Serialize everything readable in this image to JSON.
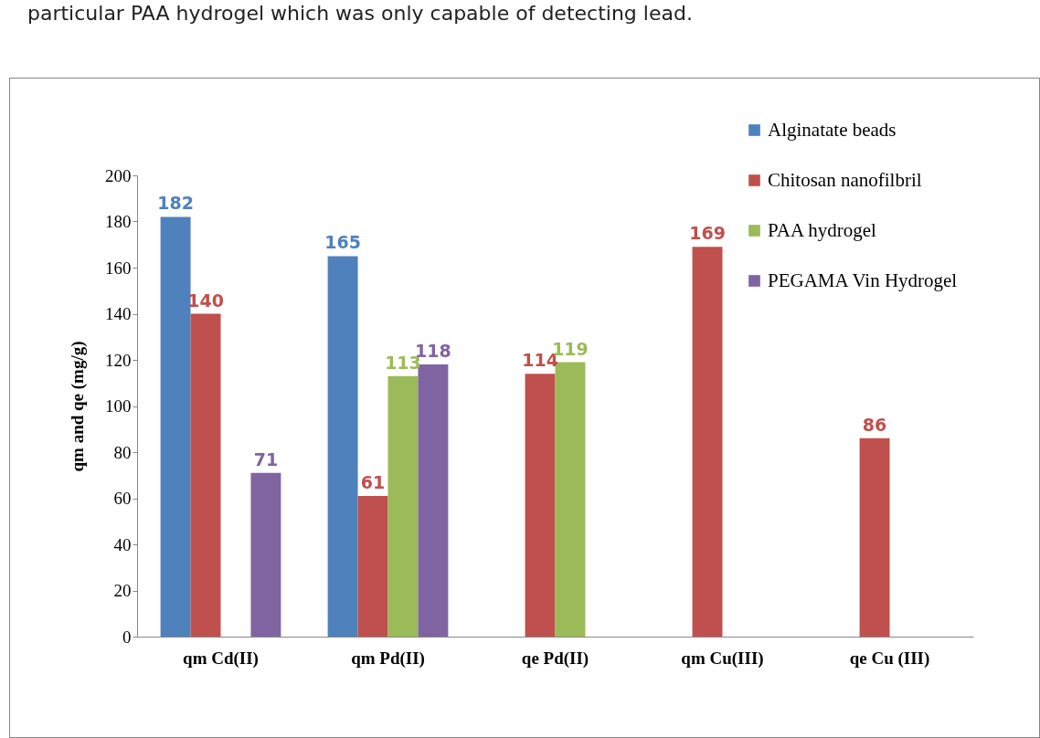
{
  "chart_data": {
    "type": "bar",
    "ylabel": "qm and qe (mg/g)",
    "categories": [
      "qm Cd(II)",
      "qm Pd(II)",
      "qe Pd(II)",
      "qm Cu(III)",
      "qe Cu (III)"
    ],
    "series": [
      {
        "name": "Alginatate beads",
        "color": "#4f81bd",
        "values": [
          182,
          165,
          null,
          null,
          null
        ]
      },
      {
        "name": "Chitosan nanofilbril",
        "color": "#c0504d",
        "values": [
          140,
          61,
          114,
          169,
          86
        ]
      },
      {
        "name": "PAA hydrogel",
        "color": "#9bbb59",
        "values": [
          null,
          113,
          119,
          null,
          null
        ]
      },
      {
        "name": "PEGAMA Vin Hydrogel",
        "color": "#8064a2",
        "values": [
          71,
          118,
          null,
          null,
          null
        ]
      }
    ],
    "ylim": [
      0,
      200
    ],
    "yticks": [
      0,
      20,
      40,
      60,
      80,
      100,
      120,
      140,
      160,
      180,
      200
    ],
    "data_labels": true,
    "grid": false,
    "legend": "top right",
    "annotations": [
      "particular PAA hydrogel which was only capable of detecting lead."
    ]
  }
}
